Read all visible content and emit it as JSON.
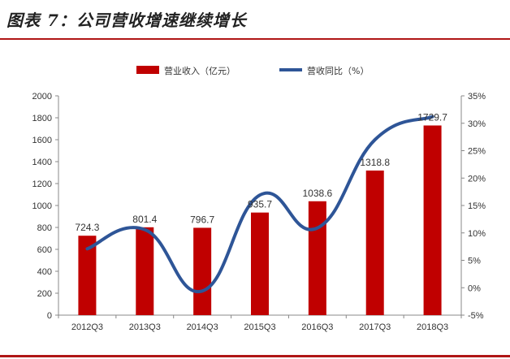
{
  "page": {
    "title": "图表 7：公司营收增速继续增长"
  },
  "chart_data": {
    "type": "bar",
    "categories": [
      "2012Q3",
      "2013Q3",
      "2014Q3",
      "2015Q3",
      "2016Q3",
      "2017Q3",
      "2018Q3"
    ],
    "series": [
      {
        "name": "营业收入（亿元）",
        "type": "bar",
        "axis": "left",
        "color": "#c00000",
        "values": [
          724.3,
          801.4,
          796.7,
          935.7,
          1038.6,
          1318.8,
          1729.7
        ],
        "labels": [
          "724.3",
          "801.4",
          "796.7",
          "935.7",
          "1038.6",
          "1318.8",
          "1729.7"
        ]
      },
      {
        "name": "营收同比（%）",
        "type": "line",
        "axis": "right",
        "color": "#2e5597",
        "values": [
          7.1,
          10.6,
          -0.6,
          16.9,
          10.9,
          27.0,
          31.2
        ]
      }
    ],
    "y_left": {
      "min": 0,
      "max": 2000,
      "step": 200,
      "ticks": [
        "0",
        "200",
        "400",
        "600",
        "800",
        "1000",
        "1200",
        "1400",
        "1600",
        "1800",
        "2000"
      ]
    },
    "y_right": {
      "min": -5,
      "max": 35,
      "step": 5,
      "ticks": [
        "-5%",
        "0%",
        "5%",
        "10%",
        "15%",
        "20%",
        "25%",
        "30%",
        "35%"
      ]
    },
    "grid": false,
    "legend_position": "top"
  }
}
